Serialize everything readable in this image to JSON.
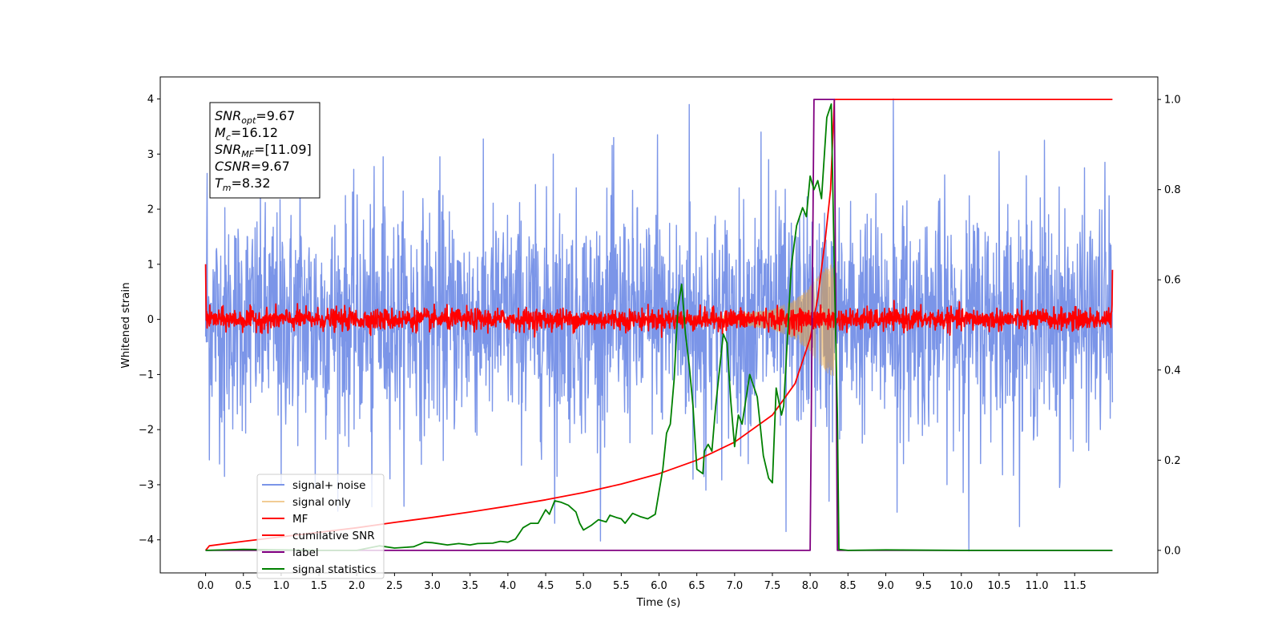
{
  "chart_data": {
    "type": "line",
    "xlabel": "Time (s)",
    "ylabel": "Whitened strain",
    "xlim": [
      -0.6,
      12.6
    ],
    "ylim": [
      -4.6,
      4.4
    ],
    "y2lim": [
      -0.05,
      1.05
    ],
    "grid": false,
    "x_ticks": [
      0.0,
      0.5,
      1.0,
      1.5,
      2.0,
      2.5,
      3.0,
      3.5,
      4.0,
      4.5,
      5.0,
      5.5,
      6.0,
      6.5,
      7.0,
      7.5,
      8.0,
      8.5,
      9.0,
      9.5,
      10.0,
      10.5,
      11.0,
      11.5
    ],
    "x_tick_labels": [
      "0.0",
      "0.5",
      "1.0",
      "1.5",
      "2.0",
      "2.5",
      "3.0",
      "3.5",
      "4.0",
      "4.5",
      "5.0",
      "5.5",
      "6.0",
      "6.5",
      "7.0",
      "7.5",
      "8.0",
      "8.5",
      "9.0",
      "9.5",
      "10.0",
      "10.5",
      "11.0",
      "11.5"
    ],
    "y_ticks": [
      -4,
      -3,
      -2,
      -1,
      0,
      1,
      2,
      3,
      4
    ],
    "y_tick_labels": [
      "−4",
      "−3",
      "−2",
      "−1",
      "0",
      "1",
      "2",
      "3",
      "4"
    ],
    "y2_ticks": [
      0.0,
      0.2,
      0.4,
      0.6,
      0.8,
      1.0
    ],
    "y2_tick_labels": [
      "0.0",
      "0.2",
      "0.4",
      "0.6",
      "0.8",
      "1.0"
    ],
    "annotation": {
      "lines": [
        {
          "main": "SNR",
          "sub": "opt",
          "rest": "=9.67"
        },
        {
          "main": "M",
          "sub": "c",
          "rest": "=16.12"
        },
        {
          "main": "SNR",
          "sub": "MF",
          "rest": "=[11.09]"
        },
        {
          "main": "CSNR",
          "sub": "",
          "rest": "=9.67"
        },
        {
          "main": "T",
          "sub": "m",
          "rest": "=8.32"
        }
      ]
    },
    "legend_placement": "lower-left",
    "series": [
      {
        "name": "signal+ noise",
        "axis": "left",
        "color": "#7b95e8",
        "kind": "noise",
        "x_range": [
          0.0,
          12.0
        ],
        "amplitude": 1.25,
        "extremes": [
          {
            "x": 0.02,
            "y": 2.65
          },
          {
            "x": 0.05,
            "y": -2.55
          },
          {
            "x": 0.25,
            "y": -2.85
          },
          {
            "x": 1.0,
            "y": -3.0
          },
          {
            "x": 1.25,
            "y": 2.8
          },
          {
            "x": 1.45,
            "y": -3.05
          },
          {
            "x": 2.2,
            "y": -3.4
          },
          {
            "x": 2.35,
            "y": 2.95
          },
          {
            "x": 3.1,
            "y": 2.95
          },
          {
            "x": 4.6,
            "y": 3.0
          },
          {
            "x": 4.62,
            "y": -3.7
          },
          {
            "x": 5.4,
            "y": 3.3
          },
          {
            "x": 5.98,
            "y": 3.35
          },
          {
            "x": 6.4,
            "y": 3.9
          },
          {
            "x": 6.45,
            "y": -2.9
          },
          {
            "x": 6.62,
            "y": -3.1
          },
          {
            "x": 7.35,
            "y": 3.4
          },
          {
            "x": 7.45,
            "y": 2.9
          },
          {
            "x": 7.68,
            "y": -3.85
          },
          {
            "x": 8.25,
            "y": -3.3
          },
          {
            "x": 9.1,
            "y": 4.0
          },
          {
            "x": 9.15,
            "y": -3.5
          },
          {
            "x": 10.1,
            "y": -4.2
          },
          {
            "x": 10.5,
            "y": 3.05
          },
          {
            "x": 11.1,
            "y": 3.25
          },
          {
            "x": 11.3,
            "y": -3.05
          },
          {
            "x": 11.9,
            "y": 2.85
          }
        ]
      },
      {
        "name": "signal only",
        "axis": "left",
        "color": "#e6a23c",
        "kind": "chirp",
        "x_range": [
          6.2,
          8.32
        ],
        "envelope": [
          [
            6.2,
            0.03
          ],
          [
            7.0,
            0.08
          ],
          [
            7.5,
            0.18
          ],
          [
            7.8,
            0.35
          ],
          [
            8.0,
            0.6
          ],
          [
            8.15,
            0.85
          ],
          [
            8.25,
            1.0
          ],
          [
            8.32,
            1.05
          ]
        ]
      },
      {
        "name": "MF",
        "axis": "left",
        "color": "#ff0000",
        "kind": "noise",
        "x_range": [
          0.0,
          12.0
        ],
        "amplitude": 0.12,
        "endpoints": [
          {
            "x": 0.0,
            "y": 1.0
          },
          {
            "x": 12.0,
            "y": 0.9
          }
        ]
      },
      {
        "name": "cumilative SNR",
        "axis": "right",
        "color": "#ff0000",
        "kind": "line",
        "points": [
          [
            0.0,
            0.0
          ],
          [
            0.05,
            0.01
          ],
          [
            0.5,
            0.02
          ],
          [
            1.0,
            0.03
          ],
          [
            1.5,
            0.04
          ],
          [
            2.0,
            0.05
          ],
          [
            2.5,
            0.062
          ],
          [
            3.0,
            0.073
          ],
          [
            3.5,
            0.085
          ],
          [
            4.0,
            0.098
          ],
          [
            4.5,
            0.112
          ],
          [
            5.0,
            0.128
          ],
          [
            5.5,
            0.147
          ],
          [
            6.0,
            0.17
          ],
          [
            6.5,
            0.2
          ],
          [
            7.0,
            0.24
          ],
          [
            7.5,
            0.3
          ],
          [
            7.8,
            0.37
          ],
          [
            8.0,
            0.47
          ],
          [
            8.1,
            0.56
          ],
          [
            8.2,
            0.69
          ],
          [
            8.27,
            0.8
          ],
          [
            8.32,
            1.0
          ],
          [
            12.0,
            1.0
          ]
        ]
      },
      {
        "name": "label",
        "axis": "right",
        "color": "#800080",
        "kind": "line",
        "points": [
          [
            0.0,
            0.0
          ],
          [
            8.0,
            0.0
          ],
          [
            8.05,
            1.0
          ],
          [
            8.32,
            1.0
          ],
          [
            8.36,
            0.0
          ],
          [
            12.0,
            0.0
          ]
        ]
      },
      {
        "name": "signal statistics",
        "axis": "right",
        "color": "#008000",
        "kind": "line",
        "points": [
          [
            0.0,
            0.0
          ],
          [
            0.5,
            0.002
          ],
          [
            1.0,
            0.001
          ],
          [
            1.5,
            0.0
          ],
          [
            2.0,
            0.0
          ],
          [
            2.3,
            0.01
          ],
          [
            2.5,
            0.005
          ],
          [
            2.75,
            0.008
          ],
          [
            2.9,
            0.018
          ],
          [
            3.0,
            0.017
          ],
          [
            3.2,
            0.012
          ],
          [
            3.35,
            0.015
          ],
          [
            3.5,
            0.012
          ],
          [
            3.6,
            0.015
          ],
          [
            3.8,
            0.016
          ],
          [
            3.9,
            0.02
          ],
          [
            4.0,
            0.018
          ],
          [
            4.1,
            0.025
          ],
          [
            4.2,
            0.05
          ],
          [
            4.3,
            0.06
          ],
          [
            4.4,
            0.06
          ],
          [
            4.5,
            0.09
          ],
          [
            4.55,
            0.08
          ],
          [
            4.62,
            0.11
          ],
          [
            4.7,
            0.107
          ],
          [
            4.8,
            0.1
          ],
          [
            4.9,
            0.085
          ],
          [
            4.95,
            0.06
          ],
          [
            5.0,
            0.045
          ],
          [
            5.1,
            0.055
          ],
          [
            5.2,
            0.068
          ],
          [
            5.3,
            0.063
          ],
          [
            5.35,
            0.078
          ],
          [
            5.45,
            0.072
          ],
          [
            5.5,
            0.07
          ],
          [
            5.55,
            0.06
          ],
          [
            5.65,
            0.082
          ],
          [
            5.75,
            0.075
          ],
          [
            5.85,
            0.07
          ],
          [
            5.95,
            0.08
          ],
          [
            6.05,
            0.18
          ],
          [
            6.1,
            0.26
          ],
          [
            6.15,
            0.28
          ],
          [
            6.2,
            0.38
          ],
          [
            6.25,
            0.54
          ],
          [
            6.3,
            0.59
          ],
          [
            6.35,
            0.48
          ],
          [
            6.4,
            0.41
          ],
          [
            6.45,
            0.32
          ],
          [
            6.5,
            0.18
          ],
          [
            6.58,
            0.17
          ],
          [
            6.6,
            0.22
          ],
          [
            6.65,
            0.235
          ],
          [
            6.7,
            0.22
          ],
          [
            6.75,
            0.32
          ],
          [
            6.85,
            0.48
          ],
          [
            6.9,
            0.46
          ],
          [
            6.95,
            0.33
          ],
          [
            7.0,
            0.23
          ],
          [
            7.05,
            0.3
          ],
          [
            7.1,
            0.28
          ],
          [
            7.2,
            0.39
          ],
          [
            7.3,
            0.34
          ],
          [
            7.38,
            0.21
          ],
          [
            7.45,
            0.16
          ],
          [
            7.5,
            0.15
          ],
          [
            7.55,
            0.36
          ],
          [
            7.62,
            0.3
          ],
          [
            7.65,
            0.32
          ],
          [
            7.75,
            0.63
          ],
          [
            7.82,
            0.72
          ],
          [
            7.9,
            0.76
          ],
          [
            7.95,
            0.74
          ],
          [
            8.0,
            0.83
          ],
          [
            8.05,
            0.8
          ],
          [
            8.1,
            0.82
          ],
          [
            8.15,
            0.78
          ],
          [
            8.22,
            0.96
          ],
          [
            8.28,
            0.99
          ],
          [
            8.32,
            0.62
          ],
          [
            8.36,
            0.3
          ],
          [
            8.38,
            0.002
          ],
          [
            8.5,
            0.0
          ],
          [
            9.0,
            0.001
          ],
          [
            10.0,
            0.0
          ],
          [
            12.0,
            0.0
          ]
        ]
      }
    ]
  }
}
